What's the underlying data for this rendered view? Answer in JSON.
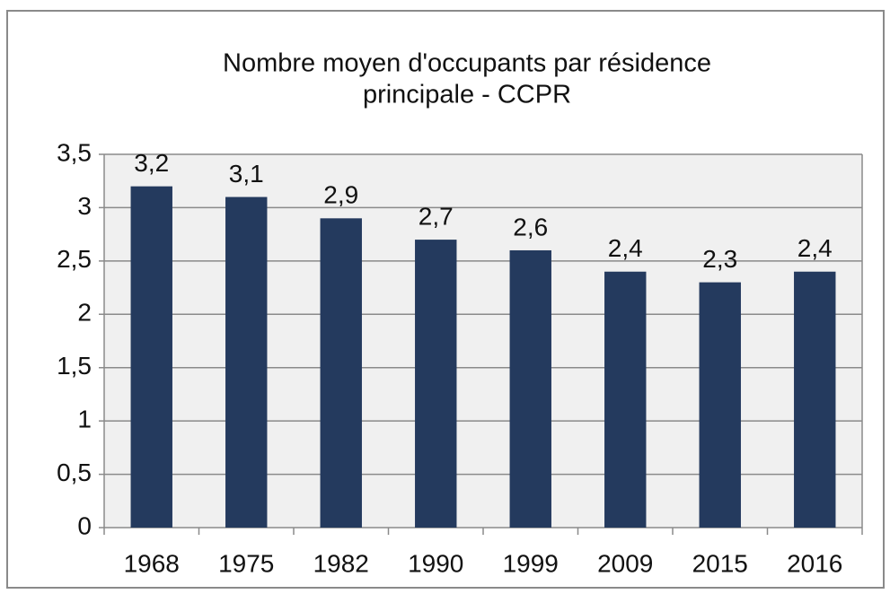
{
  "chart_data": {
    "type": "bar",
    "title": [
      "Nombre moyen d'occupants par résidence",
      "principale - CCPR"
    ],
    "categories": [
      "1968",
      "1975",
      "1982",
      "1990",
      "1999",
      "2009",
      "2015",
      "2016"
    ],
    "values": [
      3.2,
      3.1,
      2.9,
      2.7,
      2.6,
      2.4,
      2.3,
      2.4
    ],
    "value_labels": [
      "3,2",
      "3,1",
      "2,9",
      "2,7",
      "2,6",
      "2,4",
      "2,3",
      "2,4"
    ],
    "color": "#243a5e",
    "ylim": [
      0,
      3.5
    ],
    "yticks": [
      0,
      {
        "value": 0.5,
        "label": "0,5"
      },
      1,
      {
        "value": 1.5,
        "label": "1,5"
      },
      2,
      {
        "value": 2.5,
        "label": "2,5"
      },
      3,
      {
        "value": 3.5,
        "label": "3,5"
      }
    ],
    "grid": true
  }
}
